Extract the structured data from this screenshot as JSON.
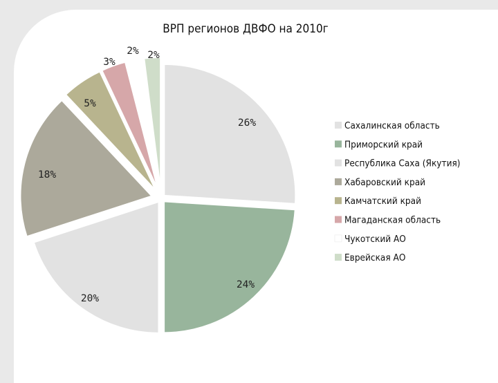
{
  "chart_data": {
    "type": "pie",
    "title": "ВРП регионов ДВФО на 2010г",
    "categories": [
      "Сахалинская область",
      "Приморский край",
      "Республика Саха (Якутия)",
      "Хабаровский край",
      "Камчатский край",
      "Магаданская область",
      "Чукотский АО",
      "Еврейская АО"
    ],
    "values": [
      26,
      24,
      20,
      18,
      5,
      3,
      2,
      2
    ],
    "labels": [
      "26%",
      "24%",
      "20%",
      "18%",
      "5%",
      "3%",
      "2%",
      "2%"
    ],
    "colors": [
      "#e2e2e2",
      "#98b59c",
      "#e2e2e2",
      "#aca99b",
      "#b8b48e",
      "#d6a7a9",
      "#ffffff",
      "#cfddc9"
    ],
    "legend_position": "right"
  }
}
